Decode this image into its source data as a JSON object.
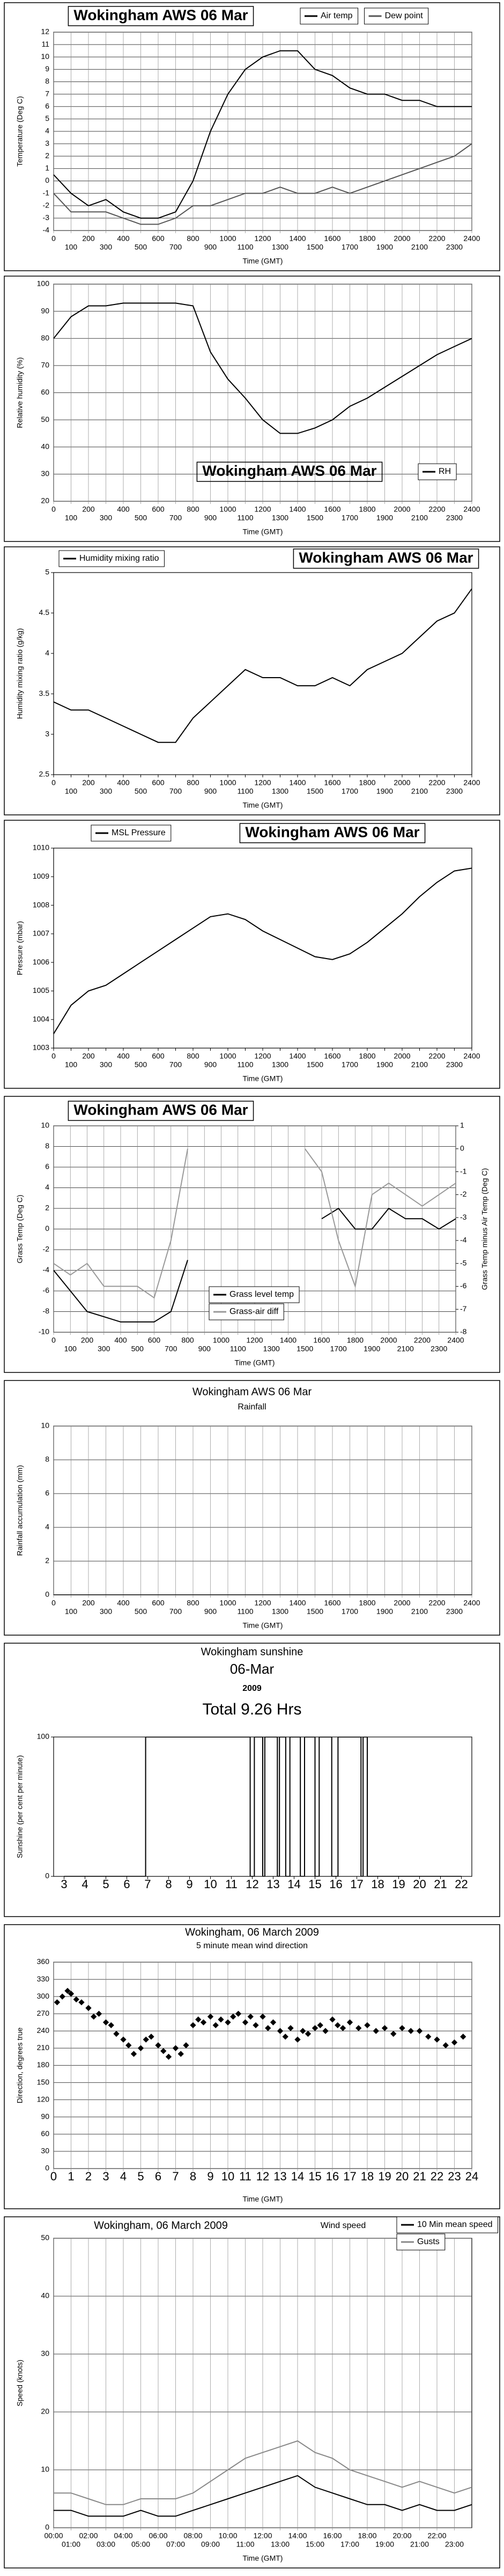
{
  "chart_data": [
    {
      "type": "line",
      "title": "Wokingham AWS 06 Mar",
      "x_label": "Time (GMT)",
      "y_label": "Temperature (Deg C)",
      "x": [
        0,
        100,
        200,
        300,
        400,
        500,
        600,
        700,
        800,
        900,
        1000,
        1100,
        1200,
        1300,
        1400,
        1500,
        1600,
        1700,
        1800,
        1900,
        2000,
        2100,
        2200,
        2300,
        2400
      ],
      "series": [
        {
          "name": "Air temp",
          "color": "#000000",
          "values": [
            0.5,
            -1,
            -2,
            -1.5,
            -2.5,
            -3,
            -3,
            -2.5,
            0,
            4,
            7,
            9,
            10,
            10.5,
            10.5,
            9,
            8.5,
            7.5,
            7,
            7,
            6.5,
            6.5,
            6,
            6,
            6
          ]
        },
        {
          "name": "Dew point",
          "color": "#555555",
          "values": [
            -1,
            -2.5,
            -2.5,
            -2.5,
            -3,
            -3.5,
            -3.5,
            -3,
            -2,
            -2,
            -1.5,
            -1,
            -1,
            -0.5,
            -1,
            -1,
            -0.5,
            -1,
            -0.5,
            0,
            0.5,
            1,
            1.5,
            2,
            3
          ]
        }
      ],
      "xlim": [
        0,
        2400
      ],
      "xticks": [
        0,
        100,
        200,
        300,
        400,
        500,
        600,
        700,
        800,
        900,
        1000,
        1100,
        1200,
        1300,
        1400,
        1500,
        1600,
        1700,
        1800,
        1900,
        2000,
        2100,
        2200,
        2300,
        2400
      ],
      "ylim": [
        -4,
        12
      ],
      "yticks": [
        -4,
        -3,
        -2,
        -1,
        0,
        1,
        2,
        3,
        4,
        5,
        6,
        7,
        8,
        9,
        10,
        11,
        12
      ],
      "grid": true
    },
    {
      "type": "line",
      "title": "Wokingham AWS 06 Mar",
      "x_label": "Time (GMT)",
      "y_label": "Relative humidity (%)",
      "x": [
        0,
        100,
        200,
        300,
        400,
        500,
        600,
        700,
        800,
        900,
        1000,
        1100,
        1200,
        1300,
        1400,
        1500,
        1600,
        1700,
        1800,
        1900,
        2000,
        2100,
        2200,
        2300,
        2400
      ],
      "series": [
        {
          "name": "RH",
          "color": "#000000",
          "values": [
            80,
            88,
            92,
            92,
            93,
            93,
            93,
            93,
            92,
            75,
            65,
            58,
            50,
            45,
            45,
            47,
            50,
            55,
            58,
            62,
            66,
            70,
            74,
            77,
            80
          ]
        }
      ],
      "xlim": [
        0,
        2400
      ],
      "xticks": [
        0,
        100,
        200,
        300,
        400,
        500,
        600,
        700,
        800,
        900,
        1000,
        1100,
        1200,
        1300,
        1400,
        1500,
        1600,
        1700,
        1800,
        1900,
        2000,
        2100,
        2200,
        2300,
        2400
      ],
      "ylim": [
        20,
        100
      ],
      "yticks": [
        20,
        30,
        40,
        50,
        60,
        70,
        80,
        90,
        100
      ],
      "grid": true
    },
    {
      "type": "line",
      "title": "Wokingham AWS 06 Mar",
      "x_label": "Time (GMT)",
      "y_label": "Humidity mixing ratio (g/kg)",
      "x": [
        0,
        100,
        200,
        300,
        400,
        500,
        600,
        700,
        800,
        900,
        1000,
        1100,
        1200,
        1300,
        1400,
        1500,
        1600,
        1700,
        1800,
        1900,
        2000,
        2100,
        2200,
        2300,
        2400
      ],
      "series": [
        {
          "name": "Humidity mixing ratio",
          "color": "#000000",
          "values": [
            3.4,
            3.3,
            3.3,
            3.2,
            3.1,
            3.0,
            2.9,
            2.9,
            3.2,
            3.4,
            3.6,
            3.8,
            3.7,
            3.7,
            3.6,
            3.6,
            3.7,
            3.6,
            3.8,
            3.9,
            4.0,
            4.2,
            4.4,
            4.5,
            4.8
          ]
        }
      ],
      "xlim": [
        0,
        2400
      ],
      "xticks": [
        0,
        100,
        200,
        300,
        400,
        500,
        600,
        700,
        800,
        900,
        1000,
        1100,
        1200,
        1300,
        1400,
        1500,
        1600,
        1700,
        1800,
        1900,
        2000,
        2100,
        2200,
        2300,
        2400
      ],
      "ylim": [
        2.5,
        5
      ],
      "yticks": [
        2.5,
        3,
        3.5,
        4,
        4.5,
        5
      ],
      "grid": false
    },
    {
      "type": "line",
      "title": "Wokingham AWS 06 Mar",
      "x_label": "Time (GMT)",
      "y_label": "Pressure (mbar)",
      "x": [
        0,
        100,
        200,
        300,
        400,
        500,
        600,
        700,
        800,
        900,
        1000,
        1100,
        1200,
        1300,
        1400,
        1500,
        1600,
        1700,
        1800,
        1900,
        2000,
        2100,
        2200,
        2300,
        2400
      ],
      "series": [
        {
          "name": "MSL Pressure",
          "color": "#000000",
          "values": [
            1003.5,
            1004.5,
            1005,
            1005.2,
            1005.6,
            1006,
            1006.4,
            1006.8,
            1007.2,
            1007.6,
            1007.7,
            1007.5,
            1007.1,
            1006.8,
            1006.5,
            1006.2,
            1006.1,
            1006.3,
            1006.7,
            1007.2,
            1007.7,
            1008.3,
            1008.8,
            1009.2,
            1009.3
          ]
        }
      ],
      "xlim": [
        0,
        2400
      ],
      "xticks": [
        0,
        100,
        200,
        300,
        400,
        500,
        600,
        700,
        800,
        900,
        1000,
        1100,
        1200,
        1300,
        1400,
        1500,
        1600,
        1700,
        1800,
        1900,
        2000,
        2100,
        2200,
        2300,
        2400
      ],
      "ylim": [
        1003,
        1010
      ],
      "yticks": [
        1003,
        1004,
        1005,
        1006,
        1007,
        1008,
        1009,
        1010
      ],
      "grid": false
    },
    {
      "type": "line",
      "title": "Wokingham AWS 06 Mar",
      "x_label": "Time (GMT)",
      "y_label": "Grass Temp (Deg C)",
      "y2_label": "Grass Temp minus Air Temp (Deg C)",
      "x": [
        0,
        100,
        200,
        300,
        400,
        500,
        600,
        700,
        800,
        900,
        1000,
        1100,
        1200,
        1300,
        1400,
        1500,
        1600,
        1700,
        1800,
        1900,
        2000,
        2100,
        2200,
        2300,
        2400
      ],
      "series": [
        {
          "name": "Grass level temp",
          "color": "#000000",
          "values": [
            -4,
            -6,
            -8,
            -8.5,
            -9,
            -9,
            -9,
            -8,
            -3,
            null,
            null,
            null,
            null,
            null,
            null,
            null,
            1,
            2,
            0,
            0,
            2,
            1,
            1,
            0,
            1
          ]
        },
        {
          "name": "Grass-air diff",
          "color": "#999999",
          "axis": "y2",
          "values": [
            -5,
            -5.5,
            -5,
            -6,
            -6,
            -6,
            -6.5,
            -4,
            0,
            null,
            null,
            null,
            null,
            null,
            null,
            0,
            -1,
            -4,
            -6,
            -2,
            -1.5,
            -2,
            -2.5,
            -2,
            -1.5
          ]
        }
      ],
      "xlim": [
        0,
        2400
      ],
      "xticks": [
        0,
        100,
        200,
        300,
        400,
        500,
        600,
        700,
        800,
        900,
        1000,
        1100,
        1200,
        1300,
        1400,
        1500,
        1600,
        1700,
        1800,
        1900,
        2000,
        2100,
        2200,
        2300,
        2400
      ],
      "ylim": [
        -10,
        10
      ],
      "yticks": [
        -10,
        -8,
        -6,
        -4,
        -2,
        0,
        2,
        4,
        6,
        8,
        10
      ],
      "y2lim": [
        -8,
        1
      ],
      "y2ticks": [
        -8,
        -7,
        -6,
        -5,
        -4,
        -3,
        -2,
        -1,
        0,
        1
      ],
      "grid": true
    },
    {
      "type": "line",
      "title": "Wokingham AWS 06 Mar",
      "subtitle": "Rainfall",
      "x_label": "Time (GMT)",
      "y_label": "Rainfall accumulation (mm)",
      "x": [
        0,
        100,
        200,
        300,
        400,
        500,
        600,
        700,
        800,
        900,
        1000,
        1100,
        1200,
        1300,
        1400,
        1500,
        1600,
        1700,
        1800,
        1900,
        2000,
        2100,
        2200,
        2300,
        2400
      ],
      "series": [
        {
          "name": "Rainfall",
          "color": "#000000",
          "values": [
            0,
            0,
            0,
            0,
            0,
            0,
            0,
            0,
            0,
            0,
            0,
            0,
            0,
            0,
            0,
            0,
            0,
            0,
            0,
            0,
            0,
            0,
            0,
            0,
            0
          ]
        }
      ],
      "xlim": [
        0,
        2400
      ],
      "xticks": [
        0,
        100,
        200,
        300,
        400,
        500,
        600,
        700,
        800,
        900,
        1000,
        1100,
        1200,
        1300,
        1400,
        1500,
        1600,
        1700,
        1800,
        1900,
        2000,
        2100,
        2200,
        2300,
        2400
      ],
      "ylim": [
        0,
        10
      ],
      "yticks": [
        0,
        2,
        4,
        6,
        8,
        10
      ],
      "grid": true
    },
    {
      "type": "line",
      "title": "Wokingham sunshine",
      "subtitle": "06-Mar",
      "annotations": [
        "2009",
        "Total 9.26 Hrs"
      ],
      "y_label": "Sunshine (per cent per minute)",
      "x": [
        3,
        6.9,
        6.9,
        11.9,
        11.9,
        12.1,
        12.1,
        12.5,
        12.5,
        12.6,
        12.6,
        13.2,
        13.2,
        13.3,
        13.3,
        13.6,
        13.6,
        13.8,
        13.8,
        14.3,
        14.3,
        14.5,
        14.5,
        15,
        15,
        15.2,
        15.2,
        15.8,
        15.8,
        16.1,
        16.1,
        17.2,
        17.2,
        17.3,
        17.3,
        17.5,
        17.5,
        22
      ],
      "values": [
        0,
        0,
        100,
        100,
        0,
        0,
        100,
        100,
        0,
        0,
        100,
        100,
        0,
        0,
        100,
        100,
        0,
        0,
        100,
        100,
        0,
        0,
        100,
        100,
        0,
        0,
        100,
        100,
        0,
        0,
        100,
        100,
        0,
        0,
        100,
        100,
        0,
        0
      ],
      "color": "#000000",
      "xlim": [
        2.5,
        22.5
      ],
      "xticks": [
        3,
        4,
        5,
        6,
        7,
        8,
        9,
        10,
        11,
        12,
        13,
        14,
        15,
        16,
        17,
        18,
        19,
        20,
        21,
        22
      ],
      "ylim": [
        0,
        100
      ],
      "yticks": [
        0,
        100
      ],
      "grid": false
    },
    {
      "type": "scatter",
      "title": "Wokingham,  06 March 2009",
      "subtitle": "5 minute mean wind direction",
      "x_label": "Time (GMT)",
      "y_label": "Direction, degrees true",
      "x": [
        0.2,
        0.5,
        0.8,
        1,
        1.3,
        1.6,
        2,
        2.3,
        2.6,
        3,
        3.3,
        3.6,
        4,
        4.3,
        4.6,
        5,
        5.3,
        5.6,
        6,
        6.3,
        6.6,
        7,
        7.3,
        7.6,
        8,
        8.3,
        8.6,
        9,
        9.3,
        9.6,
        10,
        10.3,
        10.6,
        11,
        11.3,
        11.6,
        12,
        12.3,
        12.6,
        13,
        13.3,
        13.6,
        14,
        14.3,
        14.6,
        15,
        15.3,
        15.6,
        16,
        16.3,
        16.6,
        17,
        17.5,
        18,
        18.5,
        19,
        19.5,
        20,
        20.5,
        21,
        21.5,
        22,
        22.5,
        23,
        23.5
      ],
      "values": [
        290,
        300,
        310,
        305,
        295,
        290,
        280,
        265,
        270,
        255,
        250,
        235,
        225,
        215,
        200,
        210,
        225,
        230,
        215,
        205,
        195,
        210,
        200,
        215,
        250,
        260,
        255,
        265,
        250,
        260,
        255,
        265,
        270,
        255,
        265,
        250,
        265,
        245,
        255,
        240,
        230,
        245,
        225,
        240,
        235,
        245,
        250,
        240,
        260,
        250,
        245,
        255,
        245,
        250,
        240,
        245,
        235,
        245,
        240,
        240,
        230,
        225,
        215,
        220,
        230
      ],
      "color": "#000000",
      "xlim": [
        0,
        24
      ],
      "xticks": [
        0,
        1,
        2,
        3,
        4,
        5,
        6,
        7,
        8,
        9,
        10,
        11,
        12,
        13,
        14,
        15,
        16,
        17,
        18,
        19,
        20,
        21,
        22,
        23,
        24
      ],
      "ylim": [
        0,
        360
      ],
      "yticks": [
        0,
        30,
        60,
        90,
        120,
        150,
        180,
        210,
        240,
        270,
        300,
        330,
        360
      ],
      "grid": true
    },
    {
      "type": "line",
      "title": "Wokingham,  06 March 2009",
      "subtitle": "Wind speed",
      "x_label": "Time (GMT)",
      "y_label": "Speed (knots)",
      "x": [
        0,
        1,
        2,
        3,
        4,
        5,
        6,
        7,
        8,
        9,
        10,
        11,
        12,
        13,
        14,
        15,
        16,
        17,
        18,
        19,
        20,
        21,
        22,
        23,
        24
      ],
      "series": [
        {
          "name": "10 Min mean speed",
          "color": "#000000",
          "values": [
            3,
            3,
            2,
            2,
            2,
            3,
            2,
            2,
            3,
            4,
            5,
            6,
            7,
            8,
            9,
            7,
            6,
            5,
            4,
            4,
            3,
            4,
            3,
            3,
            4
          ]
        },
        {
          "name": "Gusts",
          "color": "#888888",
          "values": [
            6,
            6,
            5,
            4,
            4,
            5,
            5,
            5,
            6,
            8,
            10,
            12,
            13,
            14,
            15,
            13,
            12,
            10,
            9,
            8,
            7,
            8,
            7,
            6,
            7
          ]
        }
      ],
      "xlim": [
        0,
        24
      ],
      "xticks": [
        {
          "value": 0,
          "label": "00:00"
        },
        {
          "value": 1,
          "label": "01:00"
        },
        {
          "value": 2,
          "label": "02:00"
        },
        {
          "value": 3,
          "label": "03:00"
        },
        {
          "value": 4,
          "label": "04:00"
        },
        {
          "value": 5,
          "label": "05:00"
        },
        {
          "value": 6,
          "label": "06:00"
        },
        {
          "value": 7,
          "label": "07:00"
        },
        {
          "value": 8,
          "label": "08:00"
        },
        {
          "value": 9,
          "label": "09:00"
        },
        {
          "value": 10,
          "label": "10:00"
        },
        {
          "value": 11,
          "label": "11:00"
        },
        {
          "value": 12,
          "label": "12:00"
        },
        {
          "value": 13,
          "label": "13:00"
        },
        {
          "value": 14,
          "label": "14:00"
        },
        {
          "value": 15,
          "label": "15:00"
        },
        {
          "value": 16,
          "label": "16:00"
        },
        {
          "value": 17,
          "label": "17:00"
        },
        {
          "value": 18,
          "label": "18:00"
        },
        {
          "value": 19,
          "label": "19:00"
        },
        {
          "value": 20,
          "label": "20:00"
        },
        {
          "value": 21,
          "label": "21:00"
        },
        {
          "value": 22,
          "label": "22:00"
        },
        {
          "value": 23,
          "label": "23:00"
        }
      ],
      "ylim": [
        0,
        50
      ],
      "yticks": [
        0,
        10,
        20,
        30,
        40,
        50
      ],
      "grid": true
    }
  ]
}
